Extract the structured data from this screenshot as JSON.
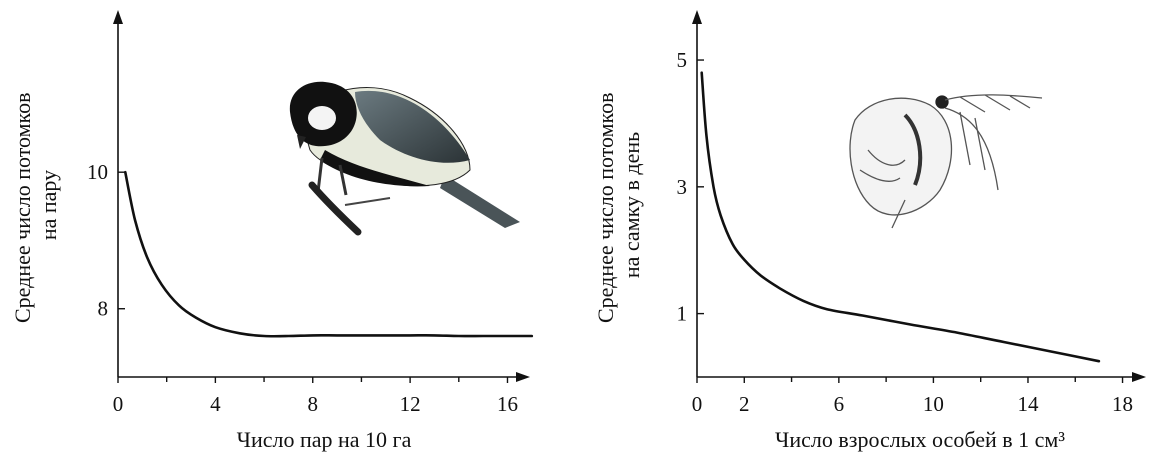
{
  "chart_data": [
    {
      "type": "line",
      "title": "",
      "xlabel": "Число пар на 10 га",
      "ylabel_lines": [
        "Среднее число потомков",
        "на пару"
      ],
      "x_ticks": [
        0,
        4,
        8,
        12,
        16
      ],
      "x_tick_labels": [
        "0",
        "4",
        "8",
        "12",
        "16"
      ],
      "y_ticks": [
        8,
        10
      ],
      "y_tick_labels": [
        "8",
        "10"
      ],
      "xlim": [
        0,
        17.5
      ],
      "ylim": [
        7.0,
        12.2
      ],
      "minor_x_ticks": [
        2,
        6,
        10,
        14
      ],
      "illustration": "great-tit-bird",
      "series": [
        {
          "x": [
            0.3,
            0.7,
            1.2,
            1.8,
            2.5,
            3.2,
            4.0,
            5.0,
            6.0,
            7.0,
            8.0,
            9.0,
            10.0,
            11.0,
            12.0,
            13.0,
            14.0,
            15.0,
            16.0,
            17.0
          ],
          "y": [
            10.0,
            9.3,
            8.75,
            8.35,
            8.05,
            7.87,
            7.73,
            7.64,
            7.6,
            7.6,
            7.61,
            7.61,
            7.61,
            7.61,
            7.61,
            7.61,
            7.6,
            7.6,
            7.6,
            7.6
          ]
        }
      ]
    },
    {
      "type": "line",
      "title": "",
      "xlabel": "Число взрослых особей в 1 см³",
      "ylabel_lines": [
        "Среднее число потомков",
        "на самку в день"
      ],
      "x_ticks": [
        0,
        2,
        6,
        10,
        14,
        18
      ],
      "x_tick_labels": [
        "0",
        "2",
        "6",
        "10",
        "14",
        "18"
      ],
      "y_ticks": [
        1,
        3,
        5
      ],
      "y_tick_labels": [
        "1",
        "3",
        "5"
      ],
      "xlim": [
        0,
        19.5
      ],
      "ylim": [
        0,
        5.6
      ],
      "minor_x_ticks": [
        4,
        8,
        12,
        16
      ],
      "illustration": "daphnia-water-flea",
      "series": [
        {
          "x": [
            0.2,
            0.4,
            0.7,
            1.0,
            1.5,
            2.0,
            2.7,
            3.5,
            4.5,
            5.5,
            7.0,
            9.0,
            11.0,
            13.0,
            15.0,
            17.0
          ],
          "y": [
            4.8,
            3.8,
            3.0,
            2.55,
            2.1,
            1.85,
            1.6,
            1.4,
            1.2,
            1.07,
            0.97,
            0.83,
            0.7,
            0.55,
            0.4,
            0.25
          ]
        }
      ]
    }
  ]
}
